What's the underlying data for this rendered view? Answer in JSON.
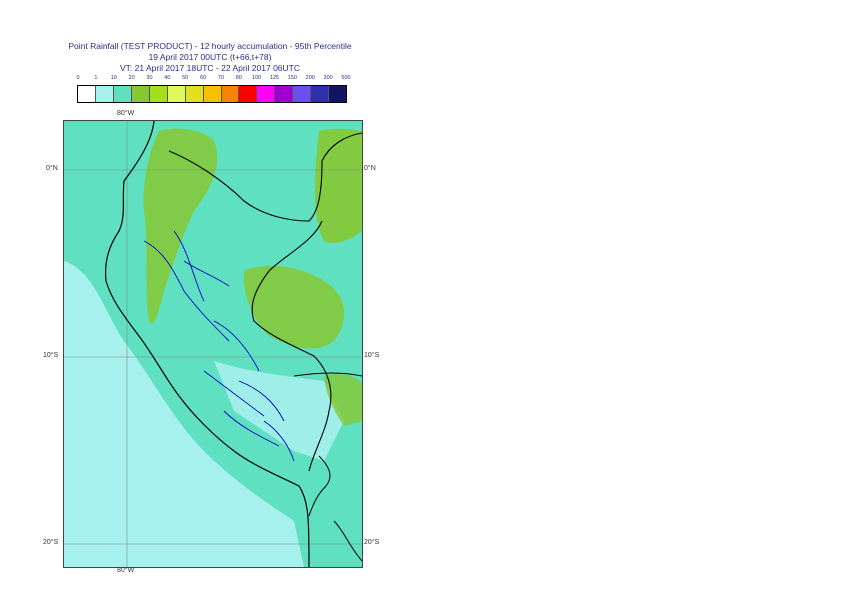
{
  "title": {
    "line1": "Point Rainfall (TEST PRODUCT) - 12 hourly accumulation - 95th Percentile",
    "line2": "19 April 2017 00UTC (t+66,t+78)",
    "line3": "VT: 21 April 2017 18UTC - 22 April 2017 06UTC"
  },
  "legend": {
    "labels": [
      "0",
      "1",
      "10",
      "20",
      "30",
      "40",
      "50",
      "60",
      "70",
      "80",
      "100",
      "125",
      "150",
      "200",
      "300",
      "500"
    ],
    "colors": [
      "#ffffff",
      "#a6f0ee",
      "#5fe0c0",
      "#86c832",
      "#a4e01a",
      "#e2f85a",
      "#e0e020",
      "#f7c000",
      "#f88200",
      "#fe0000",
      "#fe00fe",
      "#a000d0",
      "#6a4ef0",
      "#2e2eb0",
      "#141464"
    ]
  },
  "axes": {
    "top_lon": "80°W",
    "bottom_lon": "80°W",
    "lat_0_left": "0°N",
    "lat_0_right": "0°N",
    "lat_10_left": "10°S",
    "lat_10_right": "10°S",
    "lat_20_left": "20°S",
    "lat_20_right": "20°S"
  },
  "map_colors": {
    "ocean_light": "#a6f0ee",
    "land_mid": "#5fe0c0",
    "land_high": "#86c832",
    "grid": "#888888",
    "border": "#000000",
    "province": "#0000c8"
  }
}
